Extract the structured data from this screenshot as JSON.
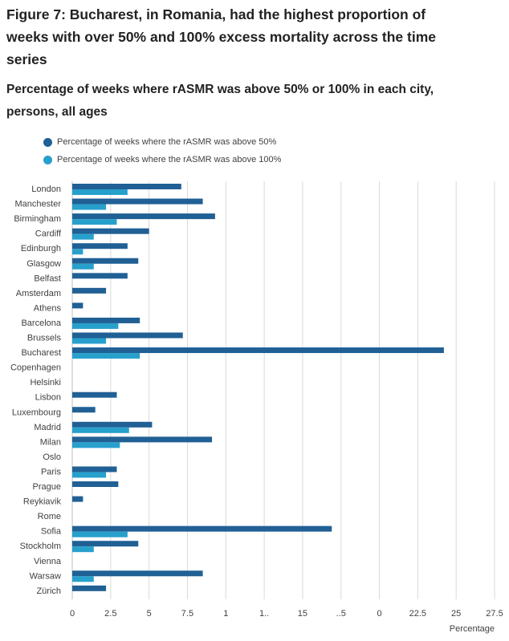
{
  "figure": {
    "title": "Figure 7: Bucharest, in Romania, had the highest proportion of weeks with over 50% and 100% excess mortality across the time series",
    "subtitle": "Percentage of weeks where rASMR was above 50% or 100% in each city, persons, all ages"
  },
  "colors": {
    "series_50": "#206095",
    "series_100": "#27a0cc",
    "grid": "#d9d9d9",
    "axis_text": "#414042"
  },
  "chart_data": {
    "type": "bar",
    "orientation": "horizontal",
    "xlabel": "Percentage",
    "ylabel": "",
    "xlim": [
      0,
      27.5
    ],
    "xticks": [
      "0",
      "2.5",
      "5",
      "7.5",
      "1",
      "1..",
      "15",
      "..5",
      "0",
      "22.5",
      "25",
      "27.5"
    ],
    "grid": true,
    "legend_position": "top-left",
    "categories": [
      "London",
      "Manchester",
      "Birmingham",
      "Cardiff",
      "Edinburgh",
      "Glasgow",
      "Belfast",
      "Amsterdam",
      "Athens",
      "Barcelona",
      "Brussels",
      "Bucharest",
      "Copenhagen",
      "Helsinki",
      "Lisbon",
      "Luxembourg",
      "Madrid",
      "Milan",
      "Oslo",
      "Paris",
      "Prague",
      "Reykiavik",
      "Rome",
      "Sofia",
      "Stockholm",
      "Vienna",
      "Warsaw",
      "Zürich"
    ],
    "series": [
      {
        "name": "Percentage of weeks where the rASMR was above 50%",
        "color": "#206095",
        "values": [
          7.1,
          8.5,
          9.3,
          5.0,
          3.6,
          4.3,
          3.6,
          2.2,
          0.7,
          4.4,
          7.2,
          24.2,
          0,
          0,
          2.9,
          1.5,
          5.2,
          9.1,
          0,
          2.9,
          3.0,
          0.7,
          0,
          16.9,
          4.3,
          0,
          8.5,
          2.2
        ]
      },
      {
        "name": "Percentage of weeks where the rASMR was above 100%",
        "color": "#27a0cc",
        "values": [
          3.6,
          2.2,
          2.9,
          1.4,
          0.7,
          1.4,
          0,
          0,
          0,
          3.0,
          2.2,
          4.4,
          0,
          0,
          0,
          0,
          3.7,
          3.1,
          0,
          2.2,
          0,
          0,
          0,
          3.6,
          1.4,
          0,
          1.4,
          0
        ]
      }
    ]
  }
}
